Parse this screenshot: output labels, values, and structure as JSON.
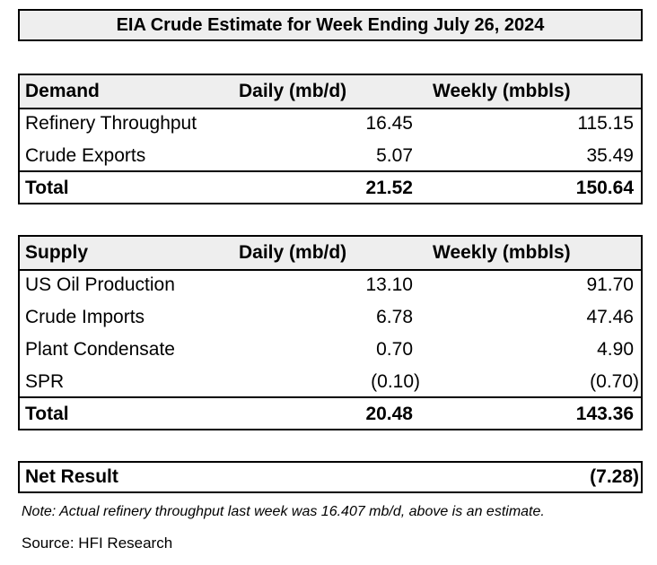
{
  "title": "EIA Crude Estimate for Week Ending July 26, 2024",
  "demand": {
    "header": {
      "label": "Demand",
      "daily": "Daily (mb/d)",
      "weekly": "Weekly (mbbls)"
    },
    "rows": [
      {
        "label": "Refinery Throughput",
        "daily": "16.45",
        "weekly": "115.15"
      },
      {
        "label": "Crude Exports",
        "daily": "5.07",
        "weekly": "35.49"
      }
    ],
    "total": {
      "label": "Total",
      "daily": "21.52",
      "weekly": "150.64"
    }
  },
  "supply": {
    "header": {
      "label": "Supply",
      "daily": "Daily (mb/d)",
      "weekly": "Weekly (mbbls)"
    },
    "rows": [
      {
        "label": "US Oil Production",
        "daily": "13.10",
        "weekly": "91.70"
      },
      {
        "label": "Crude Imports",
        "daily": "6.78",
        "weekly": "47.46"
      },
      {
        "label": "Plant Condensate",
        "daily": "0.70",
        "weekly": "4.90"
      },
      {
        "label": "SPR",
        "daily": "(0.10)",
        "weekly": "(0.70)"
      }
    ],
    "total": {
      "label": "Total",
      "daily": "20.48",
      "weekly": "143.36"
    }
  },
  "net_result": {
    "label": "Net Result",
    "value": "(7.28)"
  },
  "note": "Note: Actual refinery throughput last week was 16.407 mb/d, above is an estimate.",
  "source": "Source: HFI Research"
}
